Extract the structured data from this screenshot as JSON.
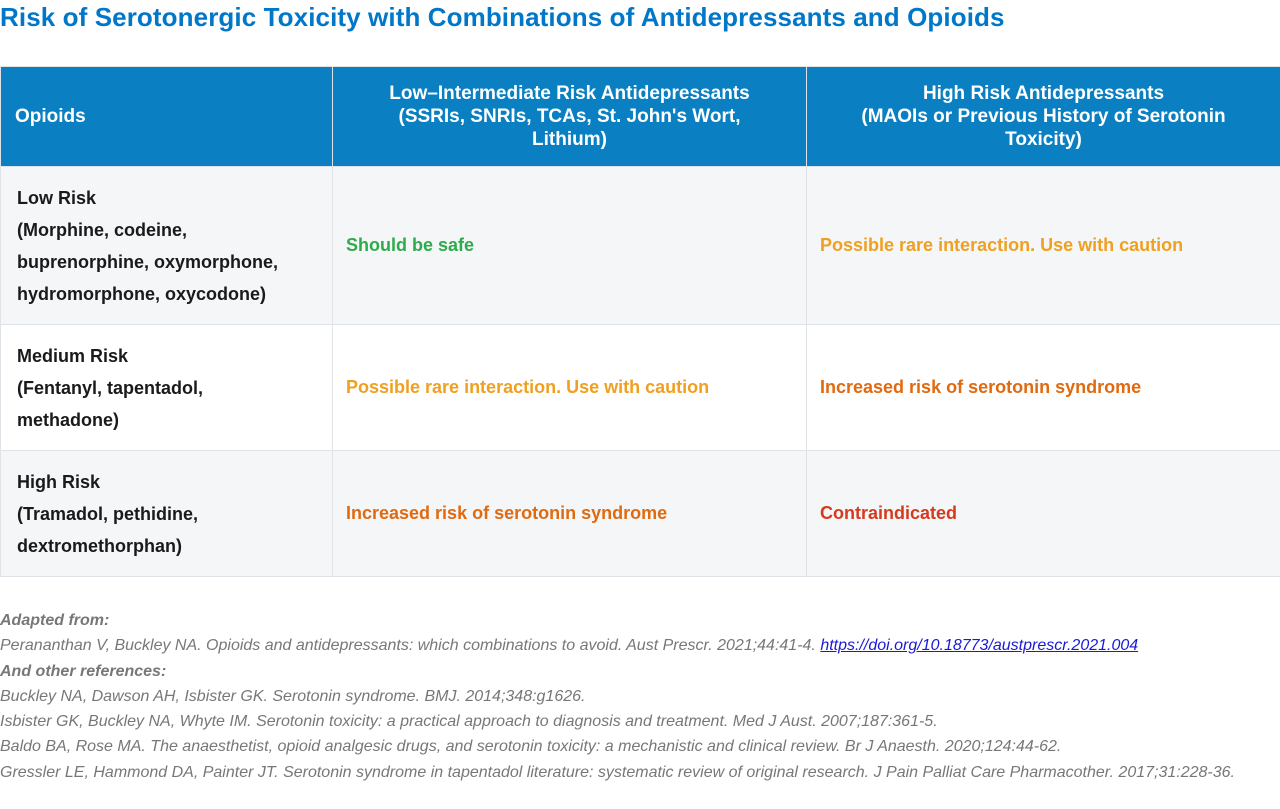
{
  "title": "Risk of Serotonergic Toxicity with Combinations of Antidepressants and Opioids",
  "colors": {
    "title": "#0077c8",
    "header_bg": "#0a80c3",
    "safe": "#2eab4a",
    "caution": "#f0a020",
    "increased": "#e06a10",
    "contraindicated": "#d63a1e"
  },
  "table": {
    "headers": {
      "col1": "Opioids",
      "col2": [
        "Low–Intermediate Risk Antidepressants",
        "(SSRIs, SNRIs, TCAs, St. John's Wort,",
        "Lithium)"
      ],
      "col3": [
        "High Risk Antidepressants",
        "(MAOIs or Previous History of Serotonin",
        "Toxicity)"
      ]
    },
    "rows": [
      {
        "opioid": [
          "Low Risk",
          "(Morphine, codeine,",
          "buprenorphine, oxymorphone,",
          "hydromorphone, oxycodone)"
        ],
        "low_intermediate": "Should be safe",
        "low_intermediate_level": "safe",
        "high": "Possible rare interaction. Use with caution",
        "high_level": "caution"
      },
      {
        "opioid": [
          "Medium Risk",
          "(Fentanyl, tapentadol,",
          "methadone)"
        ],
        "low_intermediate": "Possible rare interaction. Use with caution",
        "low_intermediate_level": "caution",
        "high": "Increased risk of serotonin syndrome",
        "high_level": "increased"
      },
      {
        "opioid": [
          "High Risk",
          "(Tramadol, pethidine,",
          "dextromethorphan)"
        ],
        "low_intermediate": "Increased risk of serotonin syndrome",
        "low_intermediate_level": "increased",
        "high": "Contraindicated",
        "high_level": "contraindicated"
      }
    ]
  },
  "references": {
    "adapted_heading": "Adapted from:",
    "adapted_text": "Perananthan V, Buckley NA. Opioids and antidepressants: which combinations to avoid. Aust Prescr. 2021;44:41-4. ",
    "adapted_link": "https://doi.org/10.18773/austprescr.2021.004",
    "other_heading": "And other references:",
    "items": [
      "Buckley NA, Dawson AH, Isbister GK. Serotonin syndrome. BMJ. 2014;348:g1626.",
      "Isbister GK, Buckley NA, Whyte IM. Serotonin toxicity: a practical approach to diagnosis and treatment. Med J Aust. 2007;187:361-5.",
      "Baldo BA, Rose MA. The anaesthetist, opioid analgesic drugs, and serotonin toxicity: a mechanistic and clinical review. Br J Anaesth. 2020;124:44-62.",
      "Gressler LE, Hammond DA, Painter JT. Serotonin syndrome in tapentadol literature: systematic review of original research. J Pain Palliat Care Pharmacother. 2017;31:228-36."
    ]
  }
}
